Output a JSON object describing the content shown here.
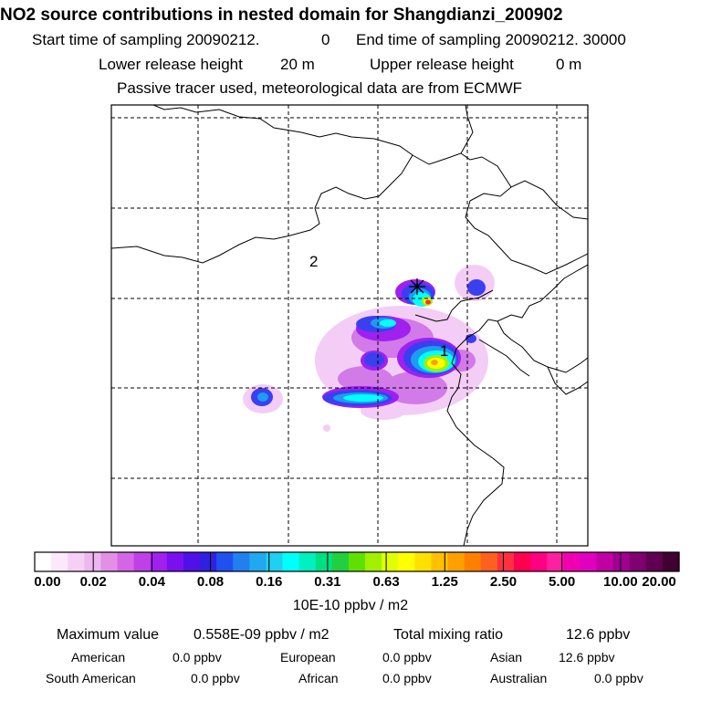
{
  "header": {
    "title": "NO2 source contributions in nested domain for Shangdianzi_200902",
    "start_label": "Start time of sampling 20090212.",
    "start_value": "0",
    "end_label": "End time of sampling 20090212. 30000",
    "lower_label": "Lower release height",
    "lower_value": "20 m",
    "upper_label": "Upper release height",
    "upper_value": "0 m",
    "note": "Passive tracer used, meteorological data are from ECMWF"
  },
  "map": {
    "region_labels": [
      "2",
      "1"
    ],
    "station_marker": "star-marker"
  },
  "chart_data": {
    "type": "heatmap",
    "title": "NO2 source contributions in nested domain for Shangdianzi_200902",
    "colorbar": {
      "tick_labels": [
        "0.00",
        "0.02",
        "0.04",
        "0.08",
        "0.16",
        "0.31",
        "0.63",
        "1.25",
        "2.50",
        "5.00",
        "10.00",
        "20.00"
      ],
      "units": "10E-10 ppbv / m2",
      "colors": [
        "#ffffff",
        "#fbe8fb",
        "#f5d0f5",
        "#eeb6ee",
        "#e38fe8",
        "#d466e6",
        "#c040e8",
        "#a020f0",
        "#7a10f0",
        "#5010e8",
        "#3020e0",
        "#2050f0",
        "#2080f0",
        "#20a8f0",
        "#20d0f0",
        "#00ffff",
        "#00f0c0",
        "#00e080",
        "#20d040",
        "#60e000",
        "#a0f000",
        "#e0ff00",
        "#ffff00",
        "#ffe000",
        "#ffc000",
        "#ffa000",
        "#ff8000",
        "#ff6020",
        "#ff3040",
        "#ff0050",
        "#ff0080",
        "#ff20a0",
        "#f000b0",
        "#e000c0",
        "#c000a0",
        "#a00090",
        "#800070",
        "#600050",
        "#400030"
      ]
    }
  },
  "stats": {
    "max_label": "Maximum value",
    "max_value": "0.558E-09 ppbv / m2",
    "total_label": "Total mixing ratio",
    "total_value": "12.6 ppbv",
    "regions": [
      {
        "name": "American",
        "value": "0.0 ppbv"
      },
      {
        "name": "European",
        "value": "0.0 ppbv"
      },
      {
        "name": "Asian",
        "value": "12.6 ppbv"
      },
      {
        "name": "South American",
        "value": "0.0 ppbv"
      },
      {
        "name": "African",
        "value": "0.0 ppbv"
      },
      {
        "name": "Australian",
        "value": "0.0 ppbv"
      }
    ]
  }
}
